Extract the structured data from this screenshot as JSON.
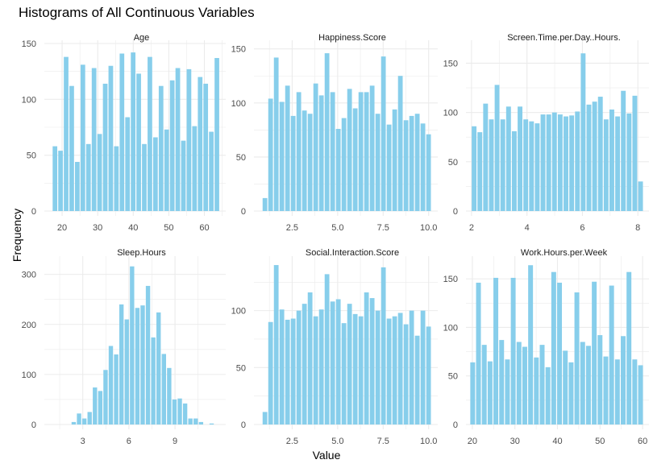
{
  "chart_data": [
    {
      "type": "bar",
      "title": "Age",
      "xlim": [
        15,
        66
      ],
      "ylim": [
        0,
        150
      ],
      "xticks": [
        20,
        30,
        40,
        50,
        60
      ],
      "xtick_labels": [
        "20",
        "30",
        "40",
        "50",
        "60"
      ],
      "yticks": [
        0,
        50,
        100,
        150
      ],
      "ytick_labels": [
        "0",
        "50",
        "100",
        "150"
      ],
      "bin_start": 17.2,
      "bin_width": 1.57,
      "values": [
        58,
        54,
        138,
        112,
        44,
        131,
        60,
        128,
        69,
        114,
        130,
        58,
        141,
        84,
        142,
        123,
        60,
        138,
        66,
        112,
        73,
        117,
        128,
        63,
        127,
        76,
        120,
        114,
        71,
        137
      ]
    },
    {
      "type": "bar",
      "title": "Happiness.Score",
      "xlim": [
        0.4,
        10.5
      ],
      "ylim": [
        0,
        155
      ],
      "xticks": [
        2.5,
        5.0,
        7.5,
        10.0
      ],
      "xtick_labels": [
        "2.5",
        "5.0",
        "7.5",
        "10.0"
      ],
      "yticks": [
        0,
        50,
        100,
        150
      ],
      "ytick_labels": [
        "0",
        "50",
        "100",
        "150"
      ],
      "bin_start": 0.85,
      "bin_width": 0.31,
      "values": [
        12,
        104,
        142,
        101,
        116,
        88,
        110,
        93,
        90,
        118,
        107,
        146,
        110,
        76,
        86,
        113,
        95,
        110,
        110,
        116,
        90,
        143,
        80,
        94,
        125,
        84,
        88,
        90,
        81,
        71
      ]
    },
    {
      "type": "bar",
      "title": "Screen.Time.per.Day..Hours.",
      "xlim": [
        1.8,
        8.4
      ],
      "ylim": [
        0,
        170
      ],
      "xticks": [
        2,
        4,
        6,
        8
      ],
      "xtick_labels": [
        "2",
        "4",
        "6",
        "8"
      ],
      "yticks": [
        0,
        50,
        100,
        150
      ],
      "ytick_labels": [
        "0",
        "50",
        "100",
        "150"
      ],
      "bin_start": 1.99,
      "bin_width": 0.207,
      "values": [
        86,
        80,
        109,
        93,
        128,
        93,
        106,
        81,
        106,
        93,
        91,
        89,
        98,
        98,
        100,
        98,
        96,
        97,
        101,
        160,
        108,
        111,
        116,
        93,
        103,
        96,
        122,
        99,
        117,
        30
      ]
    },
    {
      "type": "bar",
      "title": "Sleep.Hours",
      "xlim": [
        0.5,
        12.3
      ],
      "ylim": [
        0,
        330
      ],
      "xticks": [
        3,
        6,
        9
      ],
      "xtick_labels": [
        "3",
        "6",
        "9"
      ],
      "yticks": [
        0,
        100,
        200,
        300
      ],
      "ytick_labels": [
        "0",
        "100",
        "200",
        "300"
      ],
      "bin_start": 1.55,
      "bin_width": 0.345,
      "values": [
        0,
        0,
        5,
        22,
        12,
        25,
        74,
        67,
        109,
        157,
        140,
        240,
        210,
        316,
        233,
        238,
        277,
        174,
        224,
        141,
        113,
        50,
        52,
        42,
        12,
        12,
        5,
        0,
        2
      ]
    },
    {
      "type": "bar",
      "title": "Social.Interaction.Score",
      "xlim": [
        0.4,
        10.5
      ],
      "ylim": [
        0,
        145
      ],
      "xticks": [
        2.5,
        5.0,
        7.5,
        10.0
      ],
      "xtick_labels": [
        "2.5",
        "5.0",
        "7.5",
        "10.0"
      ],
      "yticks": [
        0,
        50,
        100
      ],
      "ytick_labels": [
        "0",
        "50",
        "100"
      ],
      "bin_start": 0.85,
      "bin_width": 0.31,
      "values": [
        11,
        90,
        140,
        101,
        92,
        93,
        100,
        106,
        116,
        95,
        101,
        132,
        108,
        110,
        89,
        106,
        97,
        95,
        116,
        111,
        100,
        138,
        93,
        95,
        98,
        88,
        100,
        78,
        100,
        86
      ]
    },
    {
      "type": "bar",
      "title": "Work.Hours.per.Week",
      "xlim": [
        18.5,
        61.5
      ],
      "ylim": [
        0,
        170
      ],
      "xticks": [
        20,
        30,
        40,
        50,
        60
      ],
      "xtick_labels": [
        "20",
        "30",
        "40",
        "50",
        "60"
      ],
      "yticks": [
        0,
        50,
        100,
        150
      ],
      "ytick_labels": [
        "0",
        "50",
        "100",
        "150"
      ],
      "bin_start": 19.4,
      "bin_width": 1.36,
      "values": [
        64,
        146,
        82,
        65,
        151,
        87,
        67,
        151,
        85,
        80,
        164,
        69,
        82,
        59,
        157,
        146,
        76,
        64,
        136,
        85,
        81,
        147,
        92,
        70,
        143,
        67,
        91,
        157,
        67,
        61
      ]
    }
  ],
  "title": "Histograms of All Continuous Variables",
  "xlabel": "Value",
  "ylabel": "Frequency",
  "colors": {
    "bar": "#87ceeb",
    "grid": "#ebebeb",
    "background": "#ffffff"
  }
}
